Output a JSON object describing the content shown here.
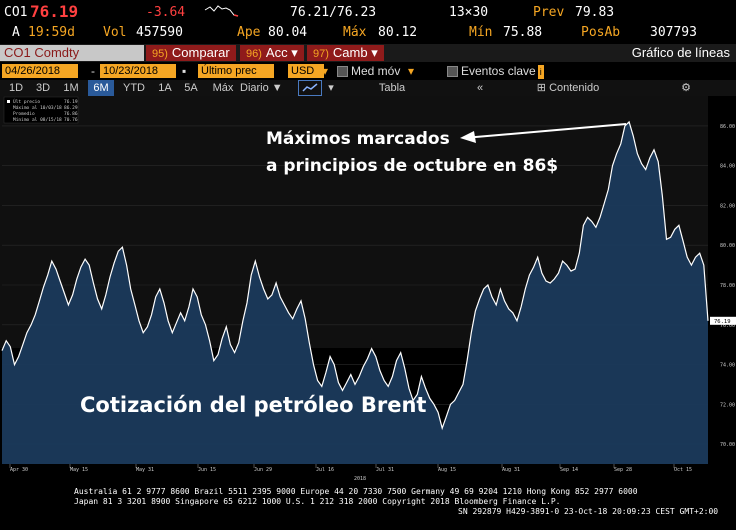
{
  "quote": {
    "ticker": "CO1",
    "price": "76.19",
    "change": "-3.64",
    "bid_ask": "76.21/76.23",
    "size": "13×30",
    "prev_label": "Prev",
    "prev": "79.83",
    "time_prefix": "A",
    "time": "19:59d",
    "vol_label": "Vol",
    "vol": "457590",
    "open_label": "Ape",
    "open": "80.04",
    "high_label": "Máx",
    "high": "80.12",
    "low_label": "Mín",
    "low": "75.88",
    "oi_label": "PosAb",
    "oi": "307793"
  },
  "toolbar": {
    "security": "CO1 Comdty",
    "compare_num": "95)",
    "compare": "Comparar",
    "actions_num": "96)",
    "actions": "Acc",
    "edit_num": "97)",
    "edit": "Camb",
    "chart_title": "Gráfico de líneas"
  },
  "settings": {
    "start_date": "04/26/2018",
    "end_date": "10/23/2018",
    "field": "Último prec",
    "currency": "USD",
    "moving_avg": "Med móv",
    "key_events": "Eventos clave"
  },
  "periods": [
    "1D",
    "3D",
    "1M",
    "6M",
    "YTD",
    "1A",
    "5A",
    "Máx"
  ],
  "active_period": "6M",
  "view": {
    "frequency": "Diario",
    "table": "Tabla",
    "content": "Contenido"
  },
  "legend": {
    "last": "Últ precio",
    "last_val": "76.19",
    "high": "Máximo al 10/03/18",
    "high_val": "86.29",
    "avg": "Promedio",
    "avg_val": "76.86",
    "low": "Mínimo al 08/15/18",
    "low_val": "70.76"
  },
  "annotations": {
    "peak_line1": "Máximos marcados",
    "peak_line2": "a principios de octubre en 86$",
    "title": "Cotización del petróleo Brent"
  },
  "footer": {
    "line1": "Australia 61 2 9777 8600 Brazil 5511 2395 9000 Europe 44 20 7330 7500 Germany 49 69 9204 1210 Hong Kong 852 2977 6000",
    "line2": "Japan 81 3 3201 8900        Singapore 65 6212 1000      U.S. 1 212 318 2000        Copyright 2018 Bloomberg Finance L.P.",
    "line3": "SN 292879 H429-3891-0 23-Oct-18 20:09:23 CEST GMT+2:00"
  },
  "colors": {
    "amber": "#f5a623",
    "red": "#ff4040",
    "area": "#1b3a5c",
    "line": "#ffffff",
    "bg": "#000000"
  },
  "chart_data": {
    "type": "area",
    "x_tick_labels": [
      "Apr 30",
      "May 15",
      "May 31",
      "Jun 15",
      "Jun 29",
      "Jul 16",
      "Jul 31",
      "Aug 15",
      "Aug 31",
      "Sep 14",
      "Sep 28",
      "Oct 15"
    ],
    "x_year_label": "2018",
    "y_ticks": [
      70,
      72,
      74,
      76,
      78,
      80,
      82,
      84,
      86
    ],
    "ylim": [
      69,
      87
    ],
    "last_value_label": "76.19",
    "values": [
      74.7,
      75.2,
      74.9,
      74.0,
      74.4,
      75.0,
      75.6,
      76.0,
      76.5,
      77.2,
      77.9,
      78.5,
      79.2,
      78.8,
      78.2,
      77.6,
      77.0,
      77.5,
      78.3,
      78.9,
      79.3,
      79.0,
      78.1,
      77.3,
      76.8,
      77.5,
      78.4,
      79.1,
      79.7,
      79.9,
      79.0,
      77.8,
      77.0,
      76.2,
      75.6,
      75.9,
      76.5,
      77.4,
      77.8,
      77.1,
      76.2,
      75.6,
      76.1,
      76.6,
      76.2,
      76.9,
      77.8,
      77.4,
      76.5,
      76.0,
      75.2,
      74.2,
      74.5,
      75.3,
      75.9,
      75.0,
      74.6,
      75.1,
      76.2,
      77.1,
      78.5,
      79.2,
      78.4,
      77.8,
      77.3,
      77.5,
      78.1,
      77.4,
      77.0,
      76.6,
      76.3,
      76.8,
      77.2,
      76.3,
      75.1,
      74.0,
      73.2,
      72.9,
      73.6,
      74.4,
      74.0,
      73.1,
      72.7,
      73.1,
      73.5,
      73.0,
      73.4,
      73.9,
      74.3,
      74.8,
      74.4,
      73.7,
      73.2,
      72.9,
      73.4,
      74.2,
      74.6,
      73.8,
      72.8,
      72.2,
      72.5,
      73.4,
      72.8,
      72.3,
      72.0,
      71.6,
      70.8,
      71.4,
      72.0,
      72.2,
      72.6,
      73.0,
      74.2,
      75.6,
      76.7,
      77.3,
      77.8,
      78.0,
      77.4,
      77.0,
      77.8,
      77.2,
      76.8,
      76.6,
      76.2,
      76.9,
      77.8,
      78.5,
      78.9,
      79.4,
      78.6,
      78.2,
      78.1,
      78.3,
      78.6,
      79.2,
      79.0,
      78.7,
      78.8,
      79.6,
      81.0,
      81.4,
      81.2,
      80.9,
      81.4,
      82.1,
      82.8,
      84.0,
      84.6,
      85.1,
      86.0,
      86.2,
      85.5,
      84.6,
      84.1,
      83.8,
      84.4,
      84.8,
      84.2,
      82.5,
      80.3,
      80.4,
      80.8,
      81.0,
      80.2,
      79.4,
      79.0,
      79.4,
      79.6,
      79.0,
      76.2
    ]
  }
}
